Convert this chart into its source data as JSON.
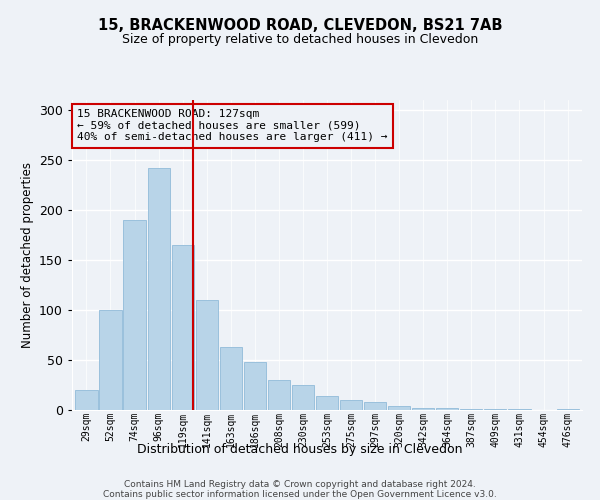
{
  "title": "15, BRACKENWOOD ROAD, CLEVEDON, BS21 7AB",
  "subtitle": "Size of property relative to detached houses in Clevedon",
  "xlabel": "Distribution of detached houses by size in Clevedon",
  "ylabel": "Number of detached properties",
  "categories": [
    "29sqm",
    "52sqm",
    "74sqm",
    "96sqm",
    "119sqm",
    "141sqm",
    "163sqm",
    "186sqm",
    "208sqm",
    "230sqm",
    "253sqm",
    "275sqm",
    "297sqm",
    "320sqm",
    "342sqm",
    "364sqm",
    "387sqm",
    "409sqm",
    "431sqm",
    "454sqm",
    "476sqm"
  ],
  "values": [
    20,
    100,
    190,
    242,
    165,
    110,
    63,
    48,
    30,
    25,
    14,
    10,
    8,
    4,
    2,
    2,
    1,
    1,
    1,
    0,
    1
  ],
  "bar_color": "#b8d4e8",
  "bar_edge_color": "#9ac0dc",
  "vline_bar_index": 4,
  "vline_color": "#cc0000",
  "annotation_text_line1": "15 BRACKENWOOD ROAD: 127sqm",
  "annotation_text_line2": "← 59% of detached houses are smaller (599)",
  "annotation_text_line3": "40% of semi-detached houses are larger (411) →",
  "ylim": [
    0,
    310
  ],
  "yticks": [
    0,
    50,
    100,
    150,
    200,
    250,
    300
  ],
  "background_color": "#eef2f7",
  "grid_color": "#ffffff",
  "footer_line1": "Contains HM Land Registry data © Crown copyright and database right 2024.",
  "footer_line2": "Contains public sector information licensed under the Open Government Licence v3.0."
}
